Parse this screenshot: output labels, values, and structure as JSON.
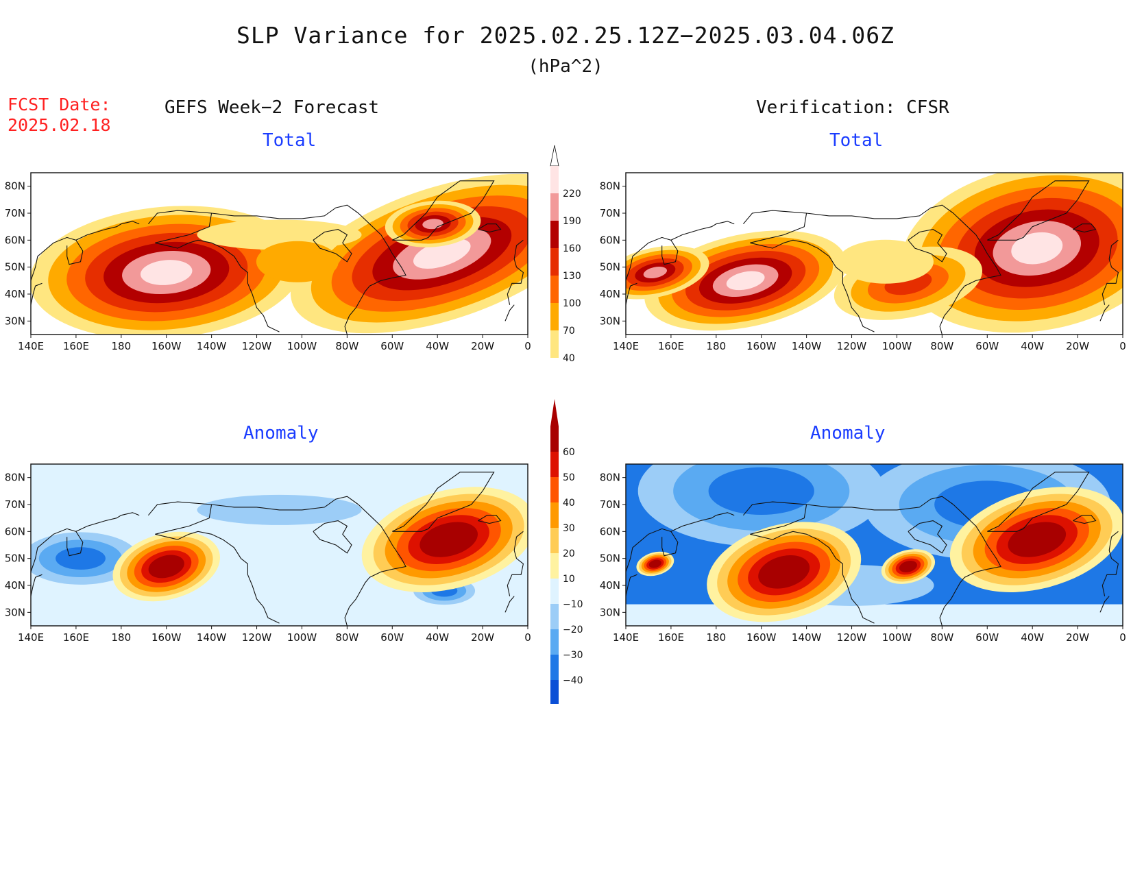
{
  "title": "SLP Variance for 2025.02.25.12Z−2025.03.04.06Z",
  "units": "(hPa^2)",
  "fcst_date_label": "FCST Date:",
  "fcst_date_value": "2025.02.18",
  "left_header": "GEFS Week−2 Forecast",
  "right_header": "Verification: CFSR",
  "panels": {
    "top_left_label": "Total",
    "top_right_label": "Total",
    "bottom_left_label": "Anomaly",
    "bottom_right_label": "Anomaly"
  },
  "chart_data": [
    {
      "type": "heatmap",
      "id": "gefs-total",
      "title": "Total",
      "x_ticks": [
        "140E",
        "160E",
        "180",
        "160W",
        "140W",
        "120W",
        "100W",
        "80W",
        "60W",
        "40W",
        "20W",
        "0"
      ],
      "y_ticks": [
        "30N",
        "40N",
        "50N",
        "60N",
        "70N",
        "80N"
      ],
      "xlim": [
        140,
        360
      ],
      "ylim": [
        25,
        85
      ],
      "levels": [
        40,
        70,
        100,
        130,
        160,
        190,
        220
      ],
      "colors": [
        "#ffffff",
        "#ffe680",
        "#ffaa00",
        "#ff6600",
        "#e62e00",
        "#b30000",
        "#f29999",
        "#ffe4e4"
      ],
      "maxima": [
        {
          "lon": 200,
          "lat": 48,
          "approx_value": 220
        },
        {
          "lon": 322,
          "lat": 55,
          "approx_value": 220
        },
        {
          "lon": 318,
          "lat": 66,
          "approx_value": 190
        }
      ]
    },
    {
      "type": "heatmap",
      "id": "cfsr-total",
      "title": "Total",
      "x_ticks": [
        "140E",
        "160E",
        "180",
        "160W",
        "140W",
        "120W",
        "100W",
        "80W",
        "60W",
        "40W",
        "20W",
        "0"
      ],
      "y_ticks": [
        "30N",
        "40N",
        "50N",
        "60N",
        "70N",
        "80N"
      ],
      "xlim": [
        140,
        360
      ],
      "ylim": [
        25,
        85
      ],
      "levels": [
        40,
        70,
        100,
        130,
        160,
        190,
        220
      ],
      "colors": [
        "#ffffff",
        "#ffe680",
        "#ffaa00",
        "#ff6600",
        "#e62e00",
        "#b30000",
        "#f29999",
        "#ffe4e4"
      ],
      "maxima": [
        {
          "lon": 193,
          "lat": 45,
          "approx_value": 220
        },
        {
          "lon": 322,
          "lat": 57,
          "approx_value": 220
        },
        {
          "lon": 153,
          "lat": 48,
          "approx_value": 190
        },
        {
          "lon": 265,
          "lat": 44,
          "approx_value": 130
        }
      ]
    },
    {
      "type": "heatmap",
      "id": "gefs-anomaly",
      "title": "Anomaly",
      "x_ticks": [
        "140E",
        "160E",
        "180",
        "160W",
        "140W",
        "120W",
        "100W",
        "80W",
        "60W",
        "40W",
        "20W",
        "0"
      ],
      "y_ticks": [
        "30N",
        "40N",
        "50N",
        "60N",
        "70N",
        "80N"
      ],
      "xlim": [
        140,
        360
      ],
      "ylim": [
        25,
        85
      ],
      "levels": [
        -40,
        -30,
        -20,
        -10,
        10,
        20,
        30,
        40,
        50,
        60
      ],
      "colors": [
        "#0b4fd6",
        "#1e78e6",
        "#5aaaf2",
        "#9ccdf7",
        "#dff3ff",
        "#ffffff",
        "#fff2a0",
        "#ffcc55",
        "#ff9900",
        "#ff5500",
        "#dd1100",
        "#a80000"
      ],
      "maxima": [
        {
          "lon": 200,
          "lat": 47,
          "approx_value": 60
        },
        {
          "lon": 325,
          "lat": 57,
          "approx_value": 60
        }
      ],
      "minima": [
        {
          "lon": 162,
          "lat": 50,
          "approx_value": -30
        },
        {
          "lon": 323,
          "lat": 38,
          "approx_value": -30
        }
      ]
    },
    {
      "type": "heatmap",
      "id": "cfsr-anomaly",
      "title": "Anomaly",
      "x_ticks": [
        "140E",
        "160E",
        "180",
        "160W",
        "140W",
        "120W",
        "100W",
        "80W",
        "60W",
        "40W",
        "20W",
        "0"
      ],
      "y_ticks": [
        "30N",
        "40N",
        "50N",
        "60N",
        "70N",
        "80N"
      ],
      "xlim": [
        140,
        360
      ],
      "ylim": [
        25,
        85
      ],
      "levels": [
        -40,
        -30,
        -20,
        -10,
        10,
        20,
        30,
        40,
        50,
        60
      ],
      "colors": [
        "#0b4fd6",
        "#1e78e6",
        "#5aaaf2",
        "#9ccdf7",
        "#dff3ff",
        "#ffffff",
        "#fff2a0",
        "#ffcc55",
        "#ff9900",
        "#ff5500",
        "#dd1100",
        "#a80000"
      ],
      "maxima": [
        {
          "lon": 210,
          "lat": 45,
          "approx_value": 60
        },
        {
          "lon": 322,
          "lat": 57,
          "approx_value": 60
        },
        {
          "lon": 265,
          "lat": 47,
          "approx_value": 60
        },
        {
          "lon": 153,
          "lat": 48,
          "approx_value": 50
        }
      ],
      "minima": [
        {
          "lon": 200,
          "lat": 75,
          "approx_value": -40
        },
        {
          "lon": 300,
          "lat": 70,
          "approx_value": -40
        }
      ]
    }
  ],
  "colorbars": {
    "total": {
      "labels": [
        "220",
        "190",
        "160",
        "130",
        "100",
        "70",
        "40"
      ]
    },
    "anomaly": {
      "labels": [
        "60",
        "50",
        "40",
        "30",
        "20",
        "10",
        "−10",
        "−20",
        "−30",
        "−40"
      ]
    }
  }
}
